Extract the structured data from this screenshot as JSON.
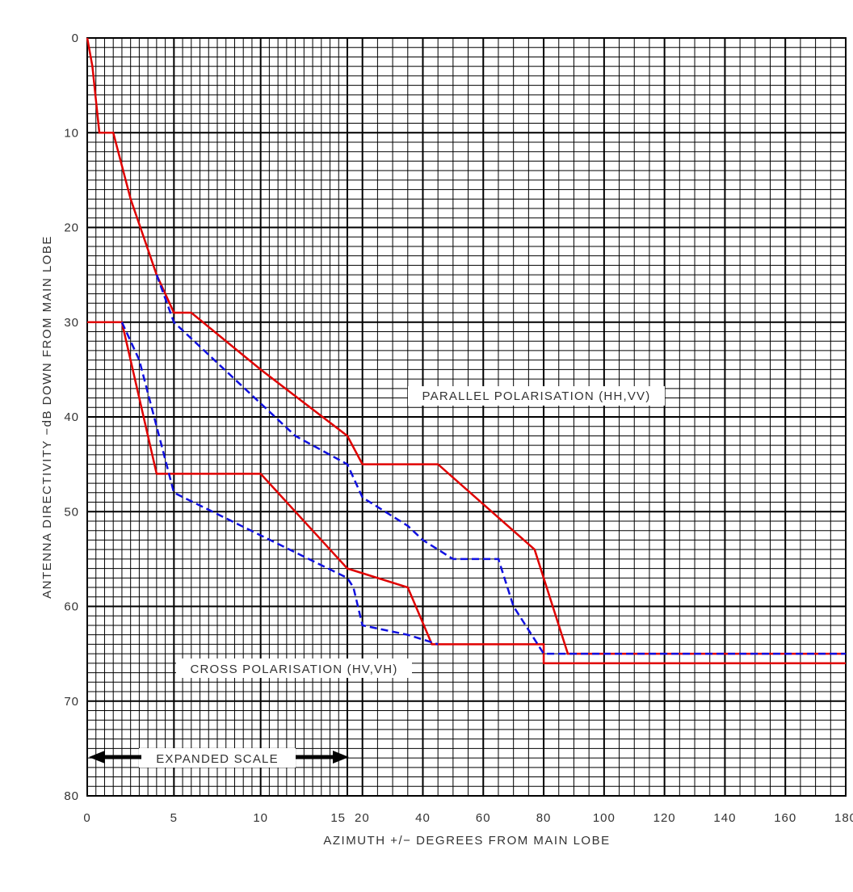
{
  "chart_data": {
    "type": "line",
    "xlabel": "AZIMUTH +/− DEGREES FROM MAIN LOBE",
    "ylabel": "ANTENNA DIRECTIVITY −dB DOWN FROM MAIN LOBE",
    "x_scale_note": "piecewise: 0–15 expanded, 15–180 compressed",
    "x_ticks": [
      "0",
      "5",
      "10",
      "15",
      "20",
      "40",
      "60",
      "80",
      "100",
      "120",
      "140",
      "160",
      "180"
    ],
    "y_ticks": [
      "0",
      "10",
      "20",
      "30",
      "40",
      "50",
      "60",
      "70",
      "80"
    ],
    "ylim": [
      0,
      80
    ],
    "y_inverted": true,
    "grid": true,
    "annotations": {
      "parallel": "PARALLEL POLARISATION (HH,VV)",
      "cross": "CROSS POLARISATION (HV,VH)",
      "expanded": "EXPANDED SCALE"
    },
    "colors": {
      "envelope": "#e00000",
      "measured": "#1010e0",
      "grid": "#000000"
    },
    "series": [
      {
        "style": "envelope",
        "x": [
          0,
          0.3,
          0.7,
          1.5,
          2.5,
          4,
          5,
          6,
          10,
          15,
          20,
          45,
          77,
          88,
          180
        ],
        "y": [
          0,
          3,
          10,
          10,
          17,
          25,
          29,
          29,
          35,
          42,
          45,
          45,
          54,
          65,
          65
        ]
      },
      {
        "style": "envelope",
        "x": [
          0,
          2,
          4,
          10,
          15,
          35,
          43,
          80,
          80,
          180
        ],
        "y": [
          30,
          30,
          46,
          46,
          56,
          58,
          64,
          64,
          66,
          66
        ]
      },
      {
        "style": "measured",
        "x": [
          4,
          5,
          12,
          15,
          20,
          35,
          40,
          50,
          65,
          70,
          80,
          85,
          180
        ],
        "y": [
          25,
          30,
          42,
          45,
          48.5,
          51.5,
          53,
          55,
          55,
          60,
          65,
          65,
          65
        ]
      },
      {
        "style": "measured",
        "x": [
          2,
          3,
          5,
          10,
          15,
          17,
          20,
          35,
          40,
          45
        ],
        "y": [
          30,
          34,
          48,
          52.5,
          57,
          58,
          62,
          63,
          63.5,
          64
        ]
      }
    ]
  }
}
